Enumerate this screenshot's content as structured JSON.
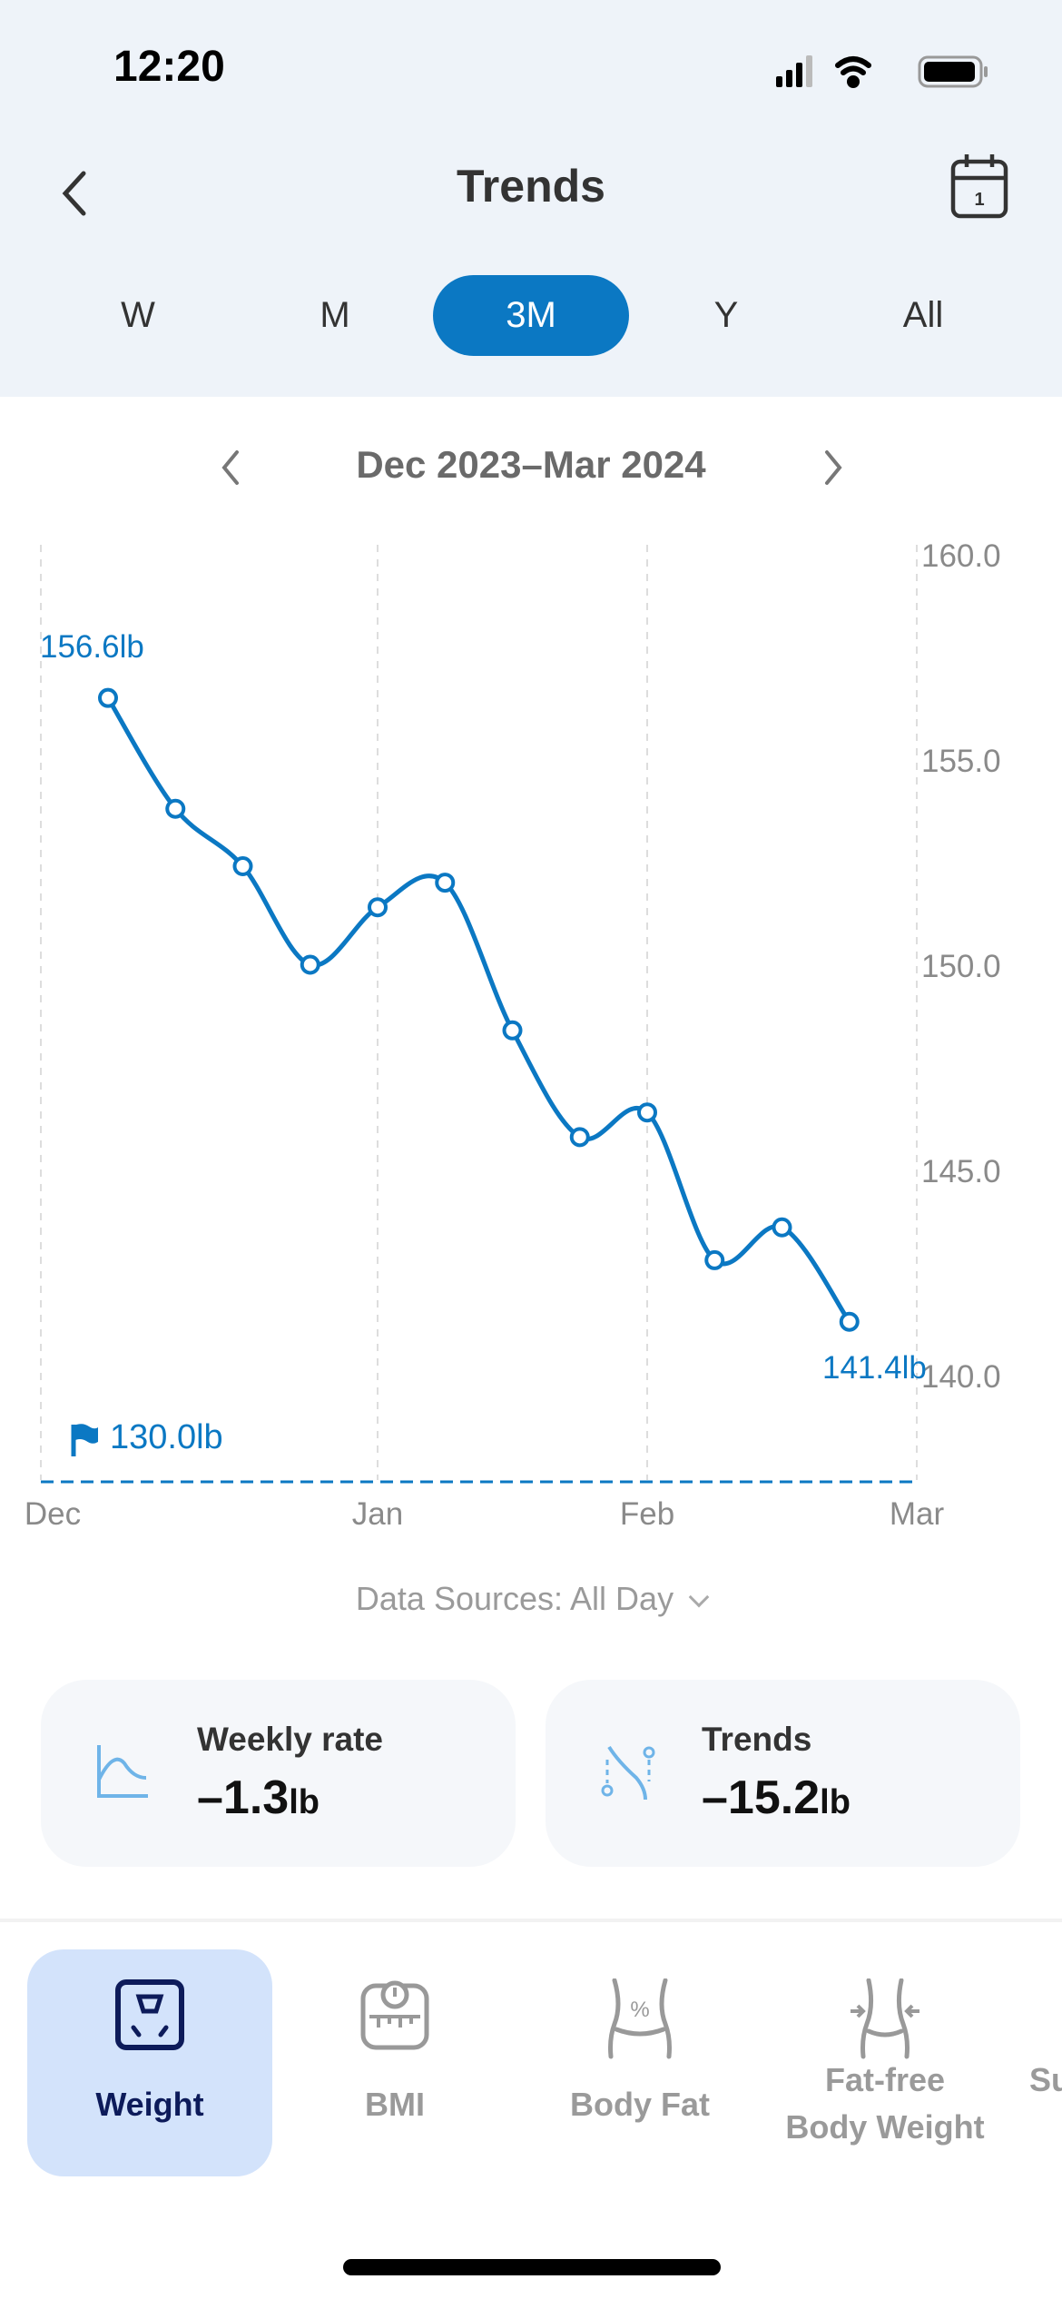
{
  "status_bar": {
    "time": "12:20"
  },
  "header": {
    "title": "Trends",
    "back_icon": "chevron-left-icon",
    "calendar_icon": "calendar-icon",
    "calendar_day": "1"
  },
  "periods": [
    {
      "label": "W",
      "active": false
    },
    {
      "label": "M",
      "active": false
    },
    {
      "label": "3M",
      "active": true
    },
    {
      "label": "Y",
      "active": false
    },
    {
      "label": "All",
      "active": false
    }
  ],
  "range": {
    "label": "Dec 2023–Mar 2024"
  },
  "colors": {
    "accent": "#0b78c3",
    "header_bg": "#eef3f9",
    "active_tab_bg": "#d3e3fb"
  },
  "chart_data": {
    "type": "line",
    "title": "",
    "xlabel": "",
    "ylabel": "",
    "x_ticks": [
      "Dec",
      "Jan",
      "Feb",
      "Mar"
    ],
    "y_ticks": [
      "160.0",
      "155.0",
      "150.0",
      "145.0",
      "140.0"
    ],
    "ylim": [
      138,
      160
    ],
    "grid": "vertical dashed",
    "series": [
      {
        "values": [
          156.6,
          153.9,
          152.5,
          150.1,
          151.5,
          152.1,
          148.5,
          145.9,
          146.5,
          142.9,
          143.7,
          141.4
        ]
      }
    ],
    "annotations": {
      "first": "156.6lb",
      "last": "141.4lb"
    },
    "goal": {
      "value": 130.0,
      "label": "130.0lb"
    }
  },
  "data_sources": {
    "label": "Data Sources: All Day"
  },
  "cards": [
    {
      "label": "Weekly rate",
      "value": "–1.3",
      "unit": "lb",
      "icon": "curve-chart-icon"
    },
    {
      "label": "Trends",
      "value": "–15.2",
      "unit": "lb",
      "icon": "trend-path-icon"
    }
  ],
  "tabs": [
    {
      "label": "Weight",
      "active": true,
      "icon": "scale-icon"
    },
    {
      "label": "BMI",
      "active": false,
      "icon": "bmi-scale-icon"
    },
    {
      "label": "Body Fat",
      "active": false,
      "icon": "body-fat-icon"
    },
    {
      "label": "Fat-free Body Weight",
      "active": false,
      "icon": "waist-icon"
    },
    {
      "label": "Su",
      "active": false,
      "icon": ""
    }
  ]
}
